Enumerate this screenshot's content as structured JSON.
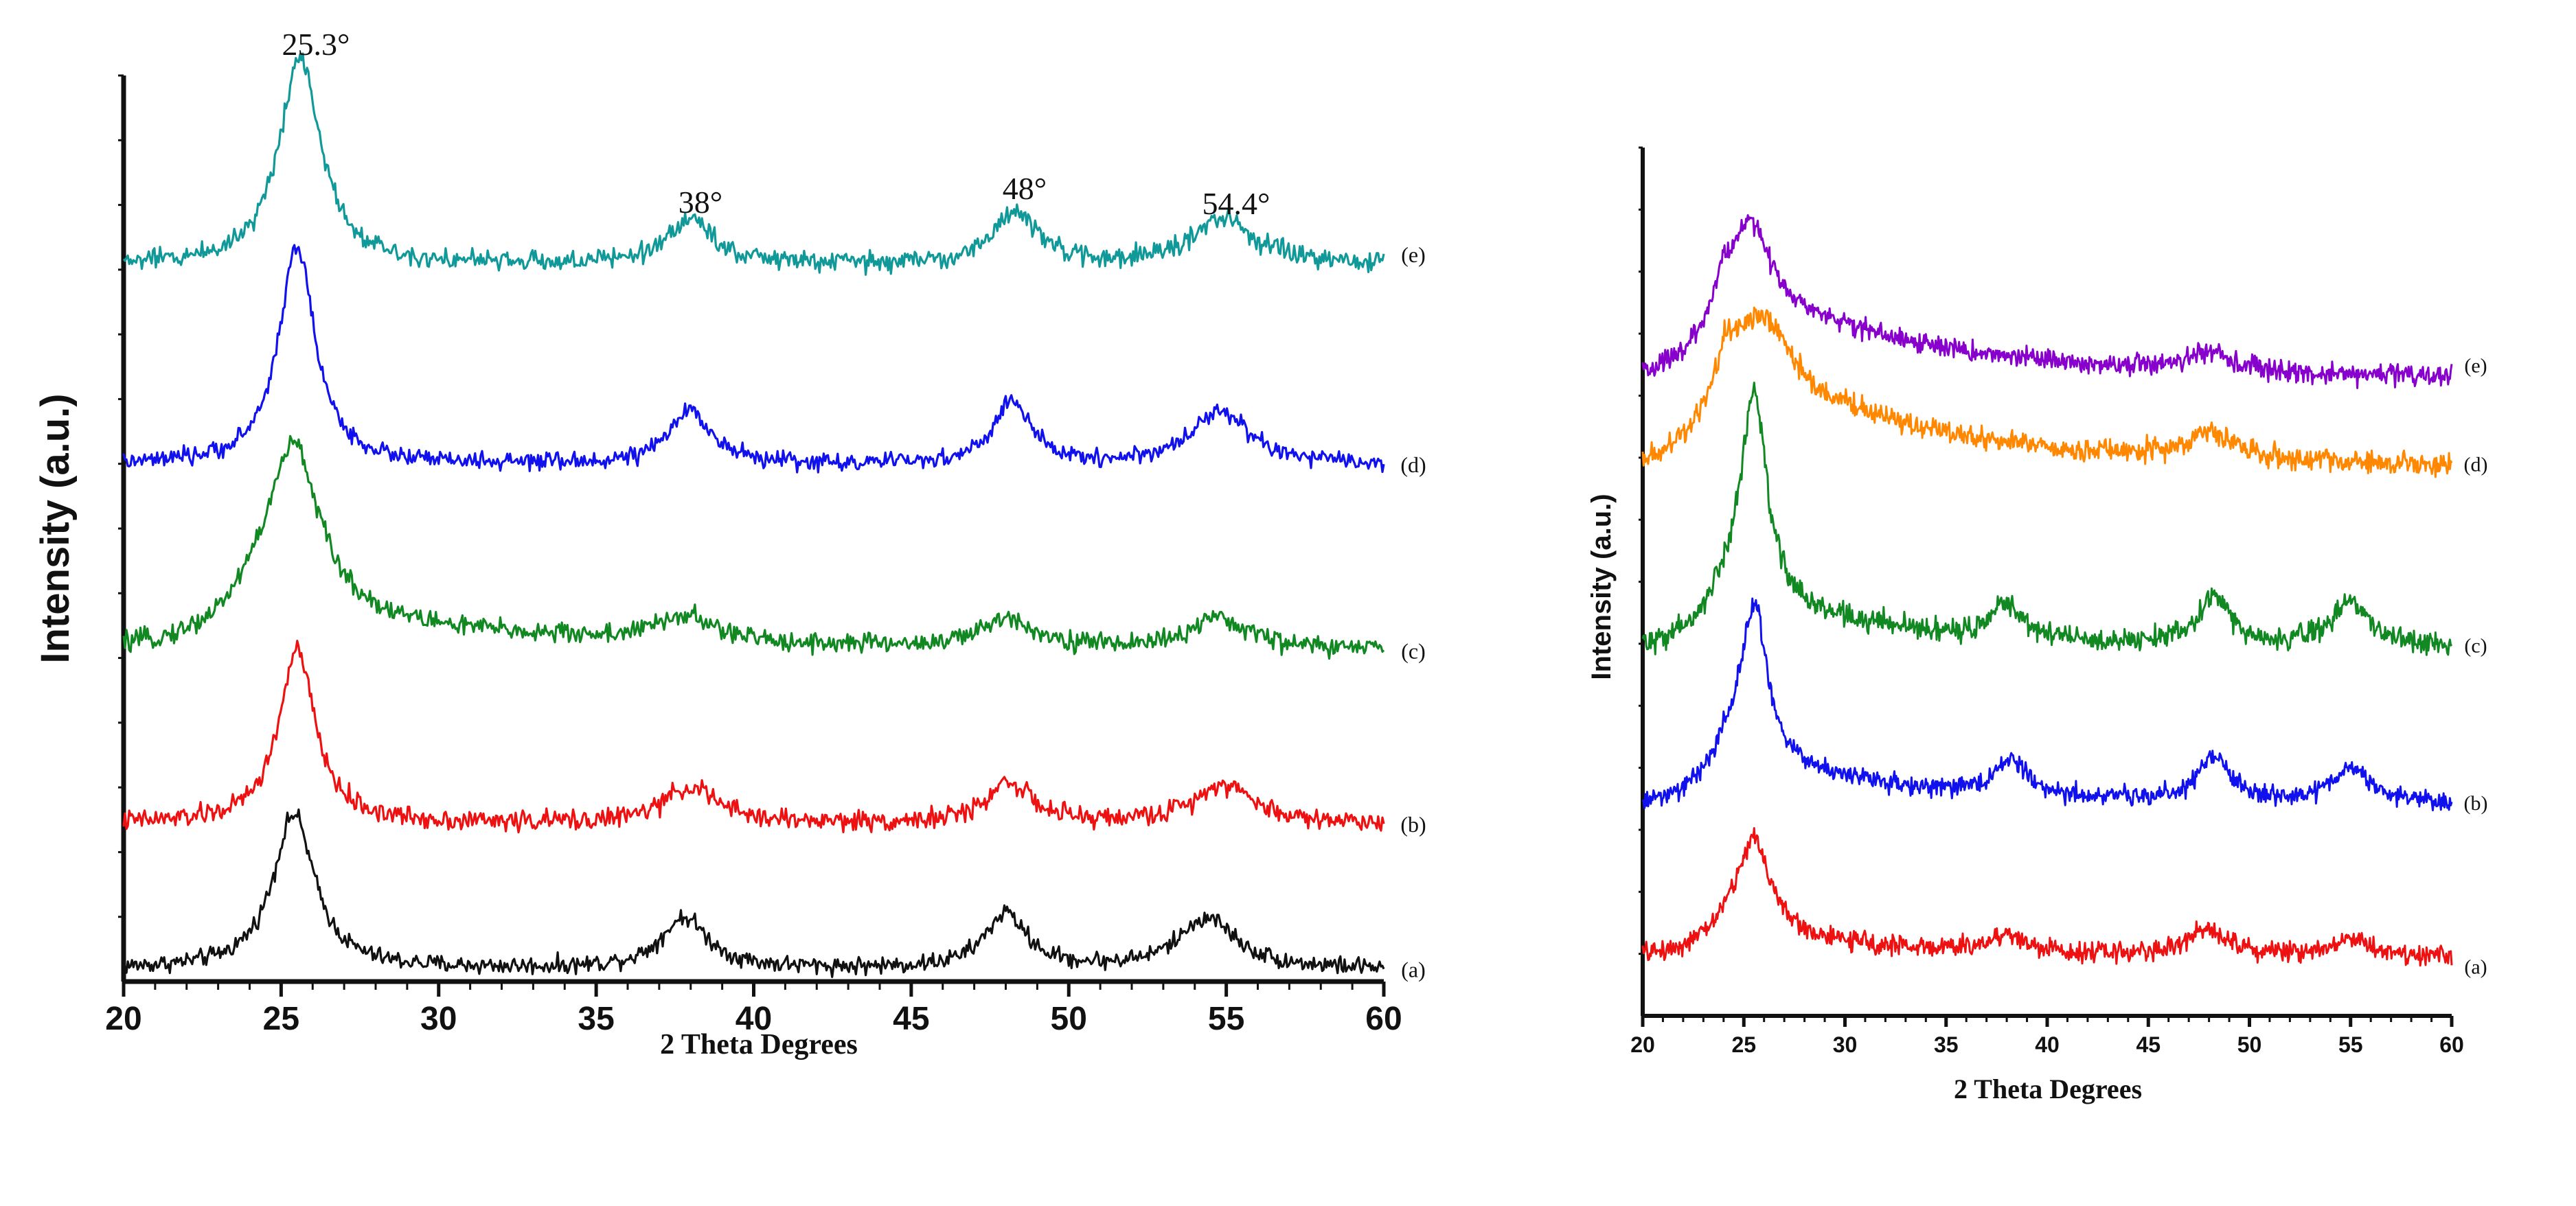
{
  "chart_data": [
    {
      "type": "line",
      "title": "",
      "xlabel": "2 Theta Degrees",
      "ylabel": "Intensity (a.u.)",
      "xlim": [
        20,
        60
      ],
      "xticks": [
        "20",
        "25",
        "30",
        "35",
        "40",
        "45",
        "50",
        "55",
        "60"
      ],
      "grid": false,
      "annotations": [
        {
          "text": "25.3°",
          "x": 25.3
        },
        {
          "text": "38°",
          "x": 38
        },
        {
          "text": "48°",
          "x": 48
        },
        {
          "text": "54.4°",
          "x": 54.4
        }
      ],
      "series": [
        {
          "name": "(a)",
          "color": "#111111",
          "baseline": 0.0,
          "background": 0.03,
          "peaks": [
            [
              25.4,
              0.85,
              0.8
            ],
            [
              37.8,
              0.28,
              0.9
            ],
            [
              48.0,
              0.3,
              0.8
            ],
            [
              54.4,
              0.28,
              1.1
            ]
          ],
          "amorphous": 0.0,
          "noise": 0.03
        },
        {
          "name": "(b)",
          "color": "#ee1111",
          "baseline": 0.8,
          "background": 0.03,
          "peaks": [
            [
              25.5,
              0.95,
              0.7
            ],
            [
              38.0,
              0.2,
              1.0
            ],
            [
              48.1,
              0.23,
              0.8
            ],
            [
              54.9,
              0.22,
              1.1
            ]
          ],
          "amorphous": 0.0,
          "noise": 0.035
        },
        {
          "name": "(c)",
          "color": "#118822",
          "baseline": 1.75,
          "background": 0.03,
          "peaks": [
            [
              25.4,
              0.95,
              1.0
            ],
            [
              37.8,
              0.14,
              1.1
            ],
            [
              48.1,
              0.16,
              1.0
            ],
            [
              54.8,
              0.16,
              1.2
            ]
          ],
          "amorphous": 0.16,
          "noise": 0.035
        },
        {
          "name": "(d)",
          "color": "#1111ee",
          "baseline": 2.75,
          "background": 0.05,
          "peaks": [
            [
              25.5,
              1.2,
              0.7
            ],
            [
              38.0,
              0.3,
              0.8
            ],
            [
              48.2,
              0.35,
              0.7
            ],
            [
              54.8,
              0.3,
              1.1
            ]
          ],
          "amorphous": 0.0,
          "noise": 0.03
        },
        {
          "name": "(e)",
          "color": "#119999",
          "baseline": 3.85,
          "background": 0.05,
          "peaks": [
            [
              25.6,
              1.15,
              0.8
            ],
            [
              38.0,
              0.25,
              0.9
            ],
            [
              48.3,
              0.3,
              0.8
            ],
            [
              54.9,
              0.25,
              1.2
            ]
          ],
          "amorphous": 0.0,
          "noise": 0.035
        }
      ]
    },
    {
      "type": "line",
      "title": "",
      "xlabel": "2 Theta Degrees",
      "ylabel": "Intensity (a.u.)",
      "xlim": [
        20,
        60
      ],
      "xticks": [
        "20",
        "25",
        "30",
        "35",
        "40",
        "45",
        "50",
        "55",
        "60"
      ],
      "grid": false,
      "series": [
        {
          "name": "(a)",
          "color": "#ee1111",
          "baseline": 0.0,
          "background": 0.05,
          "peaks": [
            [
              25.5,
              0.55,
              1.0
            ],
            [
              38.0,
              0.1,
              1.0
            ],
            [
              48.0,
              0.15,
              1.2
            ],
            [
              55.0,
              0.1,
              1.2
            ]
          ],
          "amorphous": 0.1,
          "noise": 0.035
        },
        {
          "name": "(b)",
          "color": "#1111ee",
          "baseline": 0.85,
          "background": 0.05,
          "peaks": [
            [
              25.5,
              0.9,
              0.8
            ],
            [
              38.2,
              0.2,
              1.0
            ],
            [
              48.2,
              0.25,
              1.0
            ],
            [
              55.0,
              0.2,
              1.2
            ]
          ],
          "amorphous": 0.2,
          "noise": 0.035
        },
        {
          "name": "(c)",
          "color": "#118822",
          "baseline": 1.75,
          "background": 0.03,
          "peaks": [
            [
              25.5,
              1.2,
              0.8
            ],
            [
              38.0,
              0.2,
              0.9
            ],
            [
              48.3,
              0.28,
              0.9
            ],
            [
              55.0,
              0.25,
              1.1
            ]
          ],
          "amorphous": 0.2,
          "noise": 0.04
        },
        {
          "name": "(d)",
          "color": "#ff8800",
          "baseline": 2.75,
          "background": 0.05,
          "peaks": [
            [
              26.0,
              0.35,
              1.4
            ],
            [
              48.0,
              0.15,
              1.6
            ]
          ],
          "amorphous": 0.45,
          "noise": 0.04
        },
        {
          "name": "(e)",
          "color": "#8800cc",
          "baseline": 3.25,
          "background": 0.05,
          "peaks": [
            [
              25.4,
              0.4,
              1.0
            ],
            [
              48.0,
              0.1,
              1.5
            ]
          ],
          "amorphous": 0.4,
          "noise": 0.035
        }
      ]
    }
  ]
}
